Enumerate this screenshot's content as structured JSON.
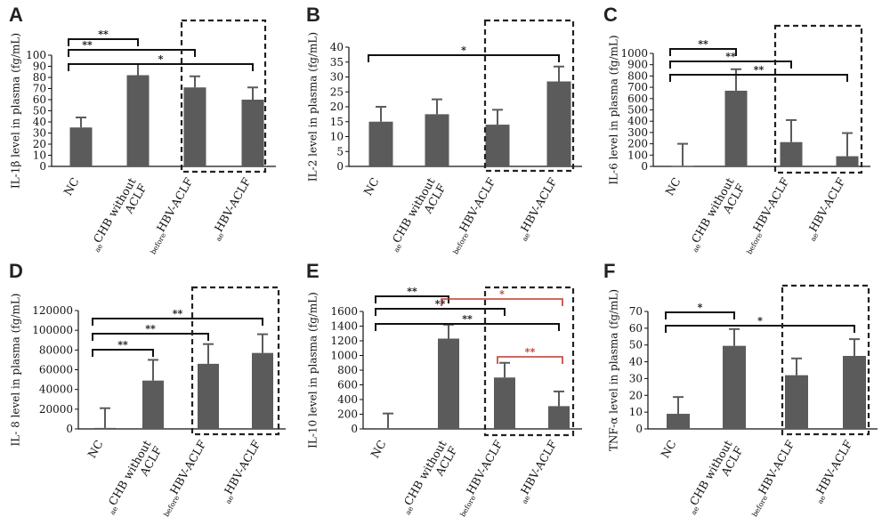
{
  "figure": {
    "colors": {
      "bar": "#5b5b5b",
      "axis": "#111111",
      "sig": "#111111",
      "sig_red": "#c0392b",
      "box": "#222222"
    }
  },
  "chart_data": [
    {
      "panel": "A",
      "type": "bar",
      "ylabel": "IL-1β level in plasma (fg/mL)",
      "ylim": [
        0,
        100
      ],
      "yticks": [
        "0",
        "10",
        "20",
        "30",
        "40",
        "50",
        "60",
        "70",
        "80",
        "90",
        "100"
      ],
      "categories": [
        {
          "main": "NC",
          "pre": ""
        },
        {
          "main": "CHB without",
          "main2": "ACLF",
          "pre": "ae"
        },
        {
          "main": "HBV-ACLF",
          "pre": "before"
        },
        {
          "main": "HBV-ACLF",
          "pre": "ae"
        }
      ],
      "values": [
        35,
        82,
        71,
        60
      ],
      "errors": [
        9,
        10,
        10,
        11
      ],
      "highlight": [
        2,
        3
      ],
      "comparisons": [
        {
          "from": 0,
          "to": 1,
          "label": "**",
          "red": false
        },
        {
          "from": 0,
          "to": 2,
          "label": "**",
          "red": false
        },
        {
          "from": 0,
          "to": 3,
          "label": "*",
          "red": false
        }
      ]
    },
    {
      "panel": "B",
      "type": "bar",
      "ylabel": "IL-2 level in plasma (fg/mL)",
      "ylim": [
        0,
        40
      ],
      "yticks": [
        "0",
        "5",
        "10",
        "15",
        "20",
        "25",
        "30",
        "35",
        "40"
      ],
      "categories": [
        {
          "main": "NC",
          "pre": ""
        },
        {
          "main": "CHB without",
          "main2": "ACLF",
          "pre": "ae"
        },
        {
          "main": "HBV-ACLF",
          "pre": "before"
        },
        {
          "main": "HBV-ACLF",
          "pre": "ae"
        }
      ],
      "values": [
        15,
        17.5,
        14,
        28.5
      ],
      "errors": [
        5,
        5,
        5,
        5
      ],
      "highlight": [
        2,
        3
      ],
      "comparisons": [
        {
          "from": 0,
          "to": 3,
          "label": "*",
          "red": false
        }
      ]
    },
    {
      "panel": "C",
      "type": "bar",
      "ylabel": "IL-6 level in plasma (fg/mL)",
      "ylim": [
        0,
        1000
      ],
      "yticks": [
        "0",
        "100",
        "200",
        "300",
        "400",
        "500",
        "600",
        "700",
        "800",
        "900",
        "1000"
      ],
      "categories": [
        {
          "main": "NC",
          "pre": ""
        },
        {
          "main": "CHB without",
          "main2": "ACLF",
          "pre": "ae"
        },
        {
          "main": "HBV-ACLF",
          "pre": "before"
        },
        {
          "main": "HBV-ACLF",
          "pre": "ae"
        }
      ],
      "values": [
        5,
        670,
        215,
        90
      ],
      "errors": [
        195,
        190,
        195,
        205
      ],
      "highlight": [
        2,
        3
      ],
      "comparisons": [
        {
          "from": 0,
          "to": 1,
          "label": "**",
          "red": false
        },
        {
          "from": 0,
          "to": 2,
          "label": "**",
          "red": false
        },
        {
          "from": 0,
          "to": 3,
          "label": "**",
          "red": false
        }
      ]
    },
    {
      "panel": "D",
      "type": "bar",
      "ylabel": "IL- 8 level in plasma (fg/mL)",
      "ylim": [
        0,
        120000
      ],
      "yticks": [
        "0",
        "20000",
        "40000",
        "60000",
        "80000",
        "100000",
        "120000"
      ],
      "categories": [
        {
          "main": "NC",
          "pre": ""
        },
        {
          "main": "CHB without",
          "main2": "ACLF",
          "pre": "ae"
        },
        {
          "main": "HBV-ACLF",
          "pre": "before"
        },
        {
          "main": "HBV-ACLF",
          "pre": "ae"
        }
      ],
      "values": [
        1000,
        49000,
        66000,
        77000
      ],
      "errors": [
        20000,
        21000,
        20000,
        19000
      ],
      "highlight": [
        2,
        3
      ],
      "comparisons": [
        {
          "from": 0,
          "to": 1,
          "label": "**",
          "red": false
        },
        {
          "from": 0,
          "to": 2,
          "label": "**",
          "red": false
        },
        {
          "from": 0,
          "to": 3,
          "label": "**",
          "red": false
        }
      ]
    },
    {
      "panel": "E",
      "type": "bar",
      "ylabel": "IL-10 level in plasma (fg/mL)",
      "ylim": [
        0,
        1600
      ],
      "yticks": [
        "0",
        "200",
        "400",
        "600",
        "800",
        "1000",
        "1200",
        "1400",
        "1600"
      ],
      "categories": [
        {
          "main": "NC",
          "pre": ""
        },
        {
          "main": "CHB without",
          "main2": "ACLF",
          "pre": "ae"
        },
        {
          "main": "HBV-ACLF",
          "pre": "before"
        },
        {
          "main": "HBV-ACLF",
          "pre": "ae"
        }
      ],
      "values": [
        10,
        1230,
        700,
        310
      ],
      "errors": [
        200,
        190,
        200,
        200
      ],
      "highlight": [
        2,
        3
      ],
      "comparisons": [
        {
          "from": 0,
          "to": 1,
          "label": "**",
          "red": false
        },
        {
          "from": 0,
          "to": 2,
          "label": "**",
          "red": false
        },
        {
          "from": 0,
          "to": 3,
          "label": "**",
          "red": false
        },
        {
          "from": 1,
          "to": 3,
          "label": "*",
          "red": true
        },
        {
          "from": 2,
          "to": 3,
          "label": "**",
          "red": true
        }
      ]
    },
    {
      "panel": "F",
      "type": "bar",
      "ylabel": "TNF-α level in plasma (fg/mL)",
      "ylim": [
        0,
        70
      ],
      "yticks": [
        "0",
        "10",
        "20",
        "30",
        "40",
        "50",
        "60",
        "70"
      ],
      "categories": [
        {
          "main": "NC",
          "pre": ""
        },
        {
          "main": "CHB without",
          "main2": "ACLF",
          "pre": "ae"
        },
        {
          "main": "HBV-ACLF",
          "pre": "before"
        },
        {
          "main": "HBV-ACLF",
          "pre": "ae"
        }
      ],
      "values": [
        9,
        49.5,
        32,
        43.5
      ],
      "errors": [
        10,
        10,
        10,
        10
      ],
      "highlight": [
        2,
        3
      ],
      "comparisons": [
        {
          "from": 0,
          "to": 1,
          "label": "*",
          "red": false
        },
        {
          "from": 0,
          "to": 3,
          "label": "*",
          "red": false
        }
      ]
    }
  ]
}
